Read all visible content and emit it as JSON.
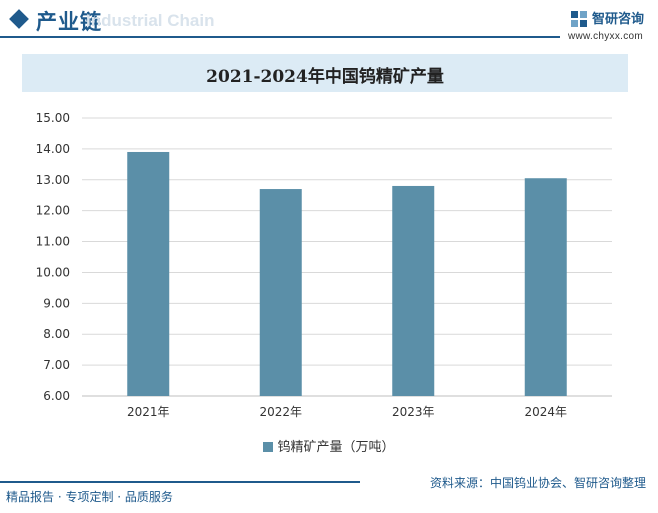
{
  "header": {
    "section_title": "产业链",
    "section_title_en": "Industrial Chain",
    "brand_name": "智研咨询",
    "brand_url": "www.chyxx.com"
  },
  "colors": {
    "bar": "#5b8fa8",
    "brand": "#1f5a8c",
    "title_band": "#dcebf5"
  },
  "legend": {
    "label": "钨精矿产量（万吨）"
  },
  "source": "资料来源：中国钨业协会、智研咨询整理",
  "footer": "精品报告 · 专项定制 · 品质服务",
  "chart_data": {
    "type": "bar",
    "title": "2021-2024年中国钨精矿产量",
    "categories": [
      "2021年",
      "2022年",
      "2023年",
      "2024年"
    ],
    "series": [
      {
        "name": "钨精矿产量（万吨）",
        "values": [
          13.9,
          12.7,
          12.8,
          13.05
        ]
      }
    ],
    "ylim": [
      6,
      15
    ],
    "yticks": [
      "6.00",
      "7.00",
      "8.00",
      "9.00",
      "10.00",
      "11.00",
      "12.00",
      "13.00",
      "14.00",
      "15.00"
    ],
    "grid": true,
    "legend_position": "bottom"
  }
}
